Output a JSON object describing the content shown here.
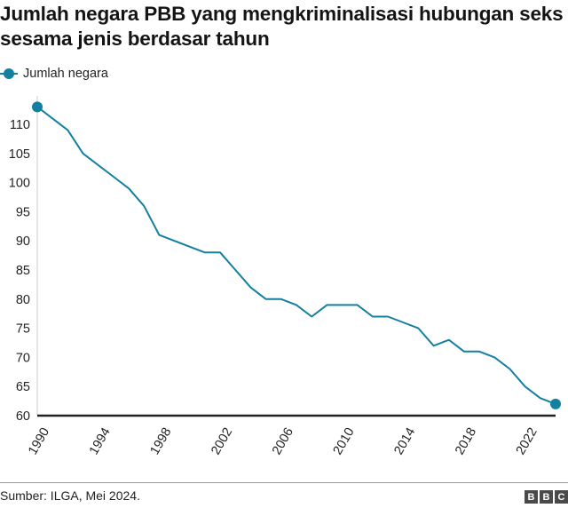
{
  "title": "Jumlah negara PBB yang mengkriminalisasi hubungan seks sesama jenis berdasar tahun",
  "legend": {
    "label": "Jumlah negara",
    "color": "#1380A1"
  },
  "footer": {
    "source": "Sumber: ILGA, Mei 2024.",
    "logo": [
      "B",
      "B",
      "C"
    ]
  },
  "chart_data": {
    "type": "line",
    "title": "Jumlah negara PBB yang mengkriminalisasi hubungan seks sesama jenis berdasar tahun",
    "xlabel": "",
    "ylabel": "",
    "x": [
      1990,
      1991,
      1992,
      1993,
      1994,
      1995,
      1996,
      1997,
      1998,
      1999,
      2000,
      2001,
      2002,
      2003,
      2004,
      2005,
      2006,
      2007,
      2008,
      2009,
      2010,
      2011,
      2012,
      2013,
      2014,
      2015,
      2016,
      2017,
      2018,
      2019,
      2020,
      2021,
      2022,
      2023,
      2024
    ],
    "series": [
      {
        "name": "Jumlah negara",
        "color": "#1380A1",
        "values": [
          113,
          111,
          109,
          105,
          103,
          101,
          99,
          96,
          91,
          90,
          89,
          88,
          88,
          85,
          82,
          80,
          80,
          79,
          77,
          79,
          79,
          79,
          77,
          77,
          76,
          75,
          72,
          73,
          71,
          71,
          70,
          68,
          65,
          63,
          62
        ]
      }
    ],
    "x_ticks": [
      1990,
      1994,
      1998,
      2002,
      2006,
      2010,
      2014,
      2018,
      2022
    ],
    "y_ticks": [
      60,
      65,
      70,
      75,
      80,
      85,
      90,
      95,
      100,
      105,
      110
    ],
    "xlim": [
      1990,
      2024
    ],
    "ylim": [
      60,
      113
    ],
    "grid": false,
    "legend_position": "top-left",
    "markers": "first-and-last"
  }
}
